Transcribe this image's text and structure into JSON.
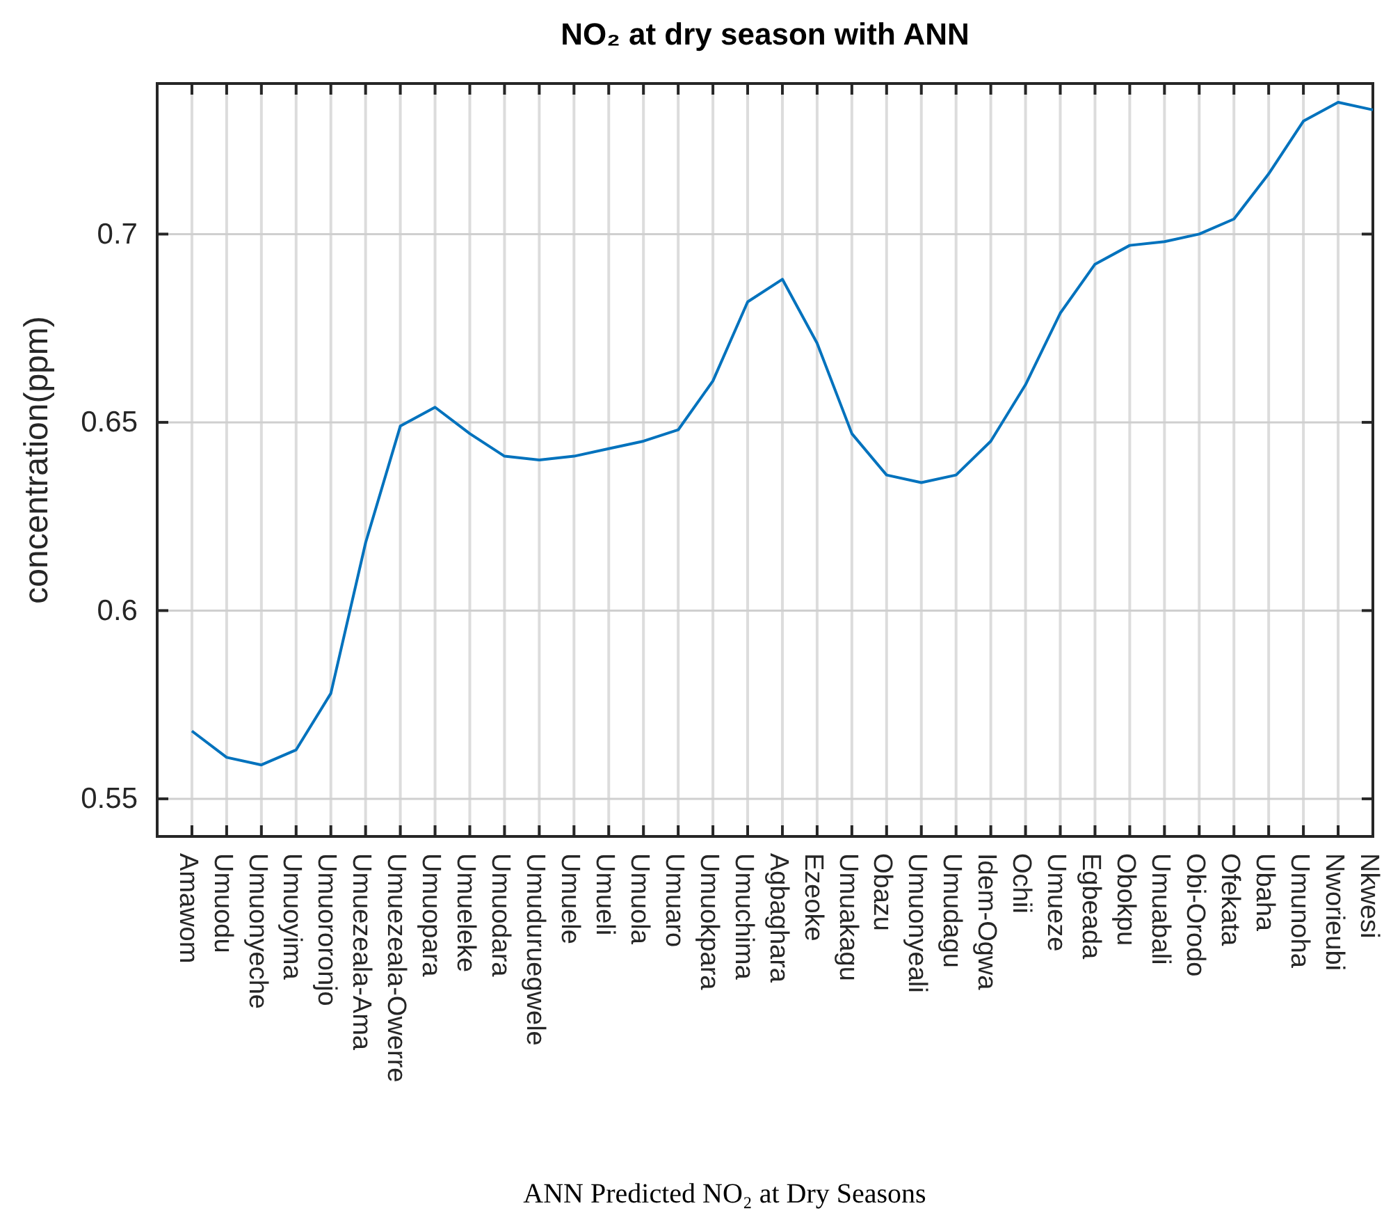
{
  "chart_data": {
    "type": "line",
    "title": "NO₂ at dry season with ANN",
    "xlabel": "ANN Predicted NO₂ at Dry Seasons",
    "ylabel": "concentration(ppm)",
    "categories": [
      "Amawom",
      "Umuodu",
      "Umuonyeche",
      "Umuoyima",
      "Umuororonjo",
      "Umuezeala-Ama",
      "Umuezeala-Owerre",
      "Umuopara",
      "Umueleke",
      "Umuodara",
      "Umuduruegwele",
      "Umuele",
      "Umueli",
      "Umuola",
      "Umuaro",
      "Umuokpara",
      "Umuchima",
      "Agbaghara",
      "Ezeoke",
      "Umuakagu",
      "Obazu",
      "Umuonyeali",
      "Umudagu",
      "Idem-Ogwa",
      "Ochii",
      "Umueze",
      "Egbeada",
      "Obokpu",
      "Umuabali",
      "Obi-Orodo",
      "Ofekata",
      "Ubaha",
      "Umunoha",
      "Nworieubi",
      "Nkwesi"
    ],
    "series": [
      {
        "color": "#0072bd",
        "values": [
          0.568,
          0.561,
          0.559,
          0.563,
          0.578,
          0.618,
          0.649,
          0.654,
          0.647,
          0.641,
          0.64,
          0.641,
          0.643,
          0.645,
          0.648,
          0.661,
          0.682,
          0.688,
          0.671,
          0.647,
          0.636,
          0.634,
          0.636,
          0.645,
          0.66,
          0.679,
          0.692,
          0.697,
          0.698,
          0.7,
          0.704,
          0.716,
          0.73,
          0.735,
          0.733
        ]
      }
    ],
    "ylim": [
      0.54,
      0.74
    ],
    "yticks": [
      0.55,
      0.6,
      0.65,
      0.7
    ],
    "grid": true,
    "line_style": "solid",
    "marker": "none"
  }
}
